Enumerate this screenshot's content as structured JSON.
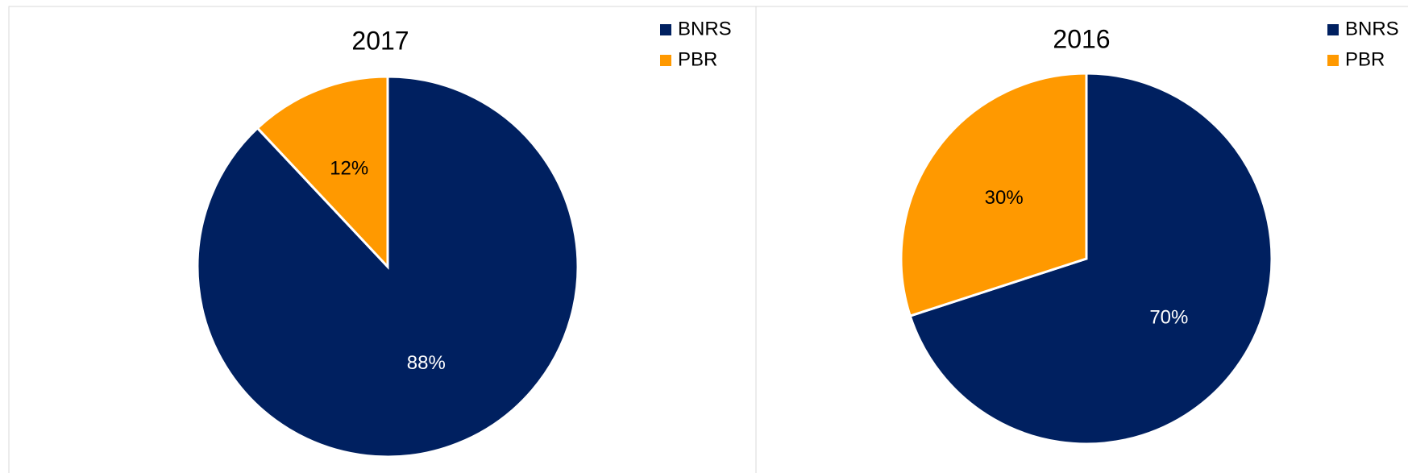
{
  "chart_data": [
    {
      "type": "pie",
      "title": "2017",
      "categories": [
        "BNRS",
        "PBR"
      ],
      "values": [
        88,
        12
      ],
      "value_labels": [
        "88%",
        "12%"
      ],
      "colors": [
        "#002060",
        "#ff9900"
      ],
      "label_colors": [
        "#ffffff",
        "#000000"
      ],
      "legend": "top-right"
    },
    {
      "type": "pie",
      "title": "2016",
      "categories": [
        "BNRS",
        "PBR"
      ],
      "values": [
        70,
        30
      ],
      "value_labels": [
        "70%",
        "30%"
      ],
      "colors": [
        "#002060",
        "#ff9900"
      ],
      "label_colors": [
        "#ffffff",
        "#000000"
      ],
      "legend": "top-right"
    }
  ]
}
